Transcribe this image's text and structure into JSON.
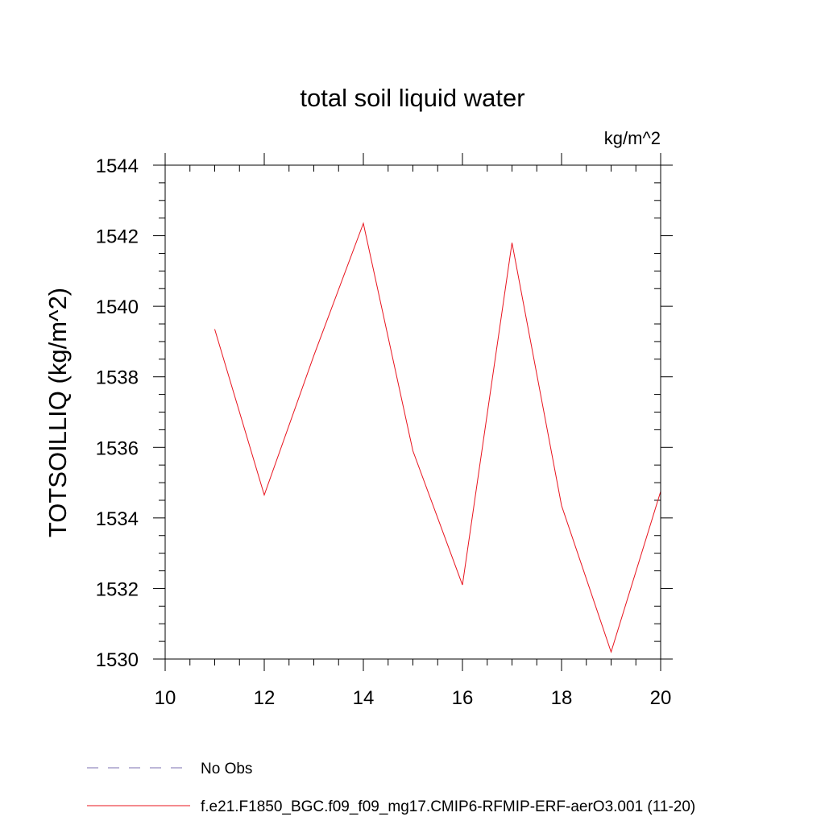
{
  "chart_data": {
    "type": "line",
    "title": "total soil liquid water",
    "units": "kg/m^2",
    "ylabel": "TOTSOILLIQ  (kg/m^2)",
    "xlabel": "",
    "xlim": [
      10,
      20
    ],
    "ylim": [
      1530,
      1544
    ],
    "xticks": [
      10,
      12,
      14,
      16,
      18,
      20
    ],
    "yticks": [
      1530,
      1532,
      1534,
      1536,
      1538,
      1540,
      1542,
      1544
    ],
    "x_minor_step": 0.5,
    "y_minor_step": 0.5,
    "grid": false,
    "legend_placement": "bottom",
    "series": [
      {
        "name": "No Obs",
        "color": "#7b6fb0",
        "style": "dashed",
        "x": [],
        "y": []
      },
      {
        "name": "f.e21.F1850_BGC.f09_f09_mg17.CMIP6-RFMIP-ERF-aerO3.001 (11-20)",
        "color": "#e8141e",
        "style": "solid",
        "x": [
          11,
          12,
          13,
          14,
          15,
          16,
          17,
          18,
          19,
          20
        ],
        "y": [
          1539.35,
          1534.65,
          1538.6,
          1542.35,
          1535.9,
          1532.1,
          1541.8,
          1534.35,
          1530.2,
          1534.75
        ]
      }
    ]
  }
}
